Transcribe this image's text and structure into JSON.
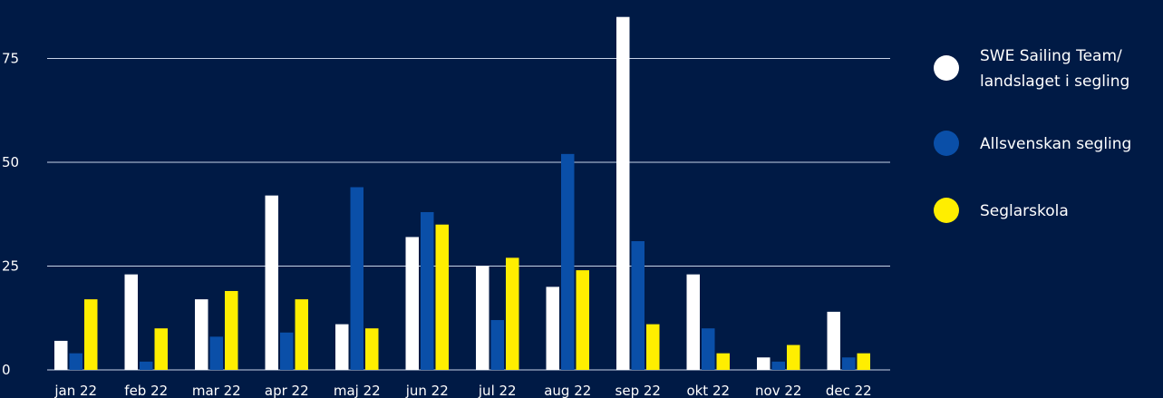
{
  "chart_data": {
    "type": "bar",
    "title": "",
    "xlabel": "",
    "ylabel": "",
    "ylim": [
      0,
      87
    ],
    "yticks": [
      0,
      25,
      50,
      75
    ],
    "grid": true,
    "legend_position": "right",
    "categories": [
      "jan 22",
      "feb 22",
      "mar 22",
      "apr 22",
      "maj 22",
      "jun 22",
      "jul 22",
      "aug 22",
      "sep 22",
      "okt 22",
      "nov 22",
      "dec 22"
    ],
    "series": [
      {
        "name": "SWE Sailing Team/ landslaget i segling",
        "name_lines": [
          "SWE Sailing Team/",
          "landslaget i segling"
        ],
        "color": "#ffffff",
        "values": [
          7,
          23,
          17,
          42,
          11,
          32,
          25,
          20,
          85,
          23,
          3,
          14
        ]
      },
      {
        "name": "Allsvenskan segling",
        "name_lines": [
          "Allsvenskan segling"
        ],
        "color": "#0a4fa8",
        "values": [
          4,
          2,
          8,
          9,
          44,
          38,
          12,
          52,
          31,
          10,
          2,
          3
        ]
      },
      {
        "name": "Seglarskola",
        "name_lines": [
          "Seglarskola"
        ],
        "color": "#ffee00",
        "values": [
          17,
          10,
          19,
          17,
          10,
          35,
          27,
          24,
          11,
          4,
          6,
          4
        ]
      }
    ]
  }
}
